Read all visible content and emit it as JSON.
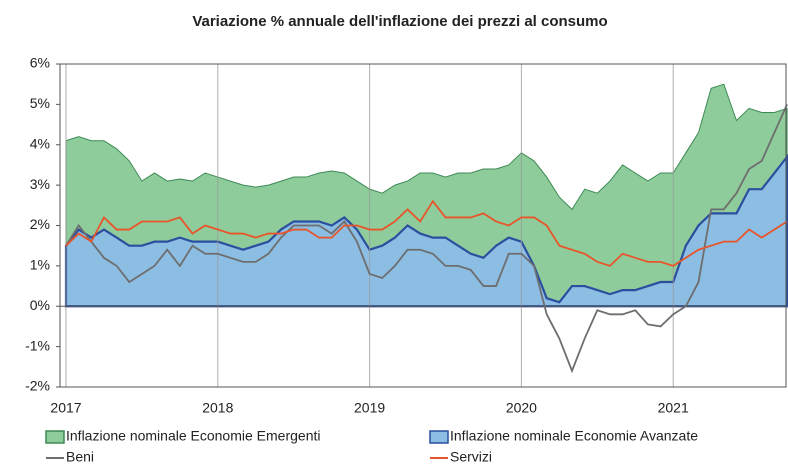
{
  "chart_data": {
    "type": "area-line",
    "title": "Variazione % annuale dell'inflazione dei prezzi al consumo",
    "categories": [
      "2017",
      null,
      null,
      null,
      null,
      null,
      null,
      null,
      null,
      null,
      null,
      null,
      "2018",
      null,
      null,
      null,
      null,
      null,
      null,
      null,
      null,
      null,
      null,
      null,
      "2019",
      null,
      null,
      null,
      null,
      null,
      null,
      null,
      null,
      null,
      null,
      null,
      "2020",
      null,
      null,
      null,
      null,
      null,
      null,
      null,
      null,
      null,
      null,
      null,
      "2021",
      null,
      null,
      null,
      null,
      null,
      null,
      null,
      null,
      null
    ],
    "series": [
      {
        "name": "Inflazione nominale Economie Emergenti",
        "kind": "area",
        "color": "#8fcc9c",
        "values": [
          4.1,
          4.2,
          4.1,
          4.1,
          3.9,
          3.6,
          3.1,
          3.3,
          3.1,
          3.15,
          3.1,
          3.3,
          3.2,
          3.1,
          3.0,
          2.95,
          3.0,
          3.1,
          3.2,
          3.2,
          3.3,
          3.35,
          3.3,
          3.1,
          2.9,
          2.8,
          3.0,
          3.1,
          3.3,
          3.3,
          3.2,
          3.3,
          3.3,
          3.4,
          3.4,
          3.5,
          3.8,
          3.6,
          3.2,
          2.7,
          2.4,
          2.9,
          2.8,
          3.1,
          3.5,
          3.3,
          3.1,
          3.3,
          3.3,
          3.8,
          4.3,
          5.4,
          5.5,
          4.6,
          4.9,
          4.8,
          4.8,
          4.9
        ]
      },
      {
        "name": "Inflazione nominale Economie Avanzate",
        "kind": "area",
        "color": "#8cbde3",
        "values": [
          1.5,
          1.9,
          1.7,
          1.9,
          1.7,
          1.5,
          1.5,
          1.6,
          1.6,
          1.7,
          1.6,
          1.6,
          1.6,
          1.5,
          1.4,
          1.5,
          1.6,
          1.9,
          2.1,
          2.1,
          2.1,
          2.0,
          2.2,
          1.9,
          1.4,
          1.5,
          1.7,
          2.0,
          1.8,
          1.7,
          1.7,
          1.5,
          1.3,
          1.2,
          1.5,
          1.7,
          1.6,
          1.0,
          0.2,
          0.1,
          0.5,
          0.5,
          0.4,
          0.3,
          0.4,
          0.4,
          0.5,
          0.6,
          0.6,
          1.5,
          2.0,
          2.3,
          2.3,
          2.3,
          2.9,
          2.9,
          3.3,
          3.7
        ]
      },
      {
        "name": "Beni",
        "kind": "line",
        "color": "#6e6e6e",
        "values": [
          1.5,
          2.0,
          1.6,
          1.2,
          1.0,
          0.6,
          0.8,
          1.0,
          1.4,
          1.0,
          1.5,
          1.3,
          1.3,
          1.2,
          1.1,
          1.1,
          1.3,
          1.7,
          2.0,
          2.0,
          2.0,
          1.8,
          2.1,
          1.6,
          0.8,
          0.7,
          1.0,
          1.4,
          1.4,
          1.3,
          1.0,
          1.0,
          0.9,
          0.5,
          0.5,
          1.3,
          1.3,
          1.0,
          -0.2,
          -0.8,
          -1.6,
          -0.8,
          -0.1,
          -0.2,
          -0.2,
          -0.1,
          -0.45,
          -0.5,
          -0.2,
          0.0,
          0.6,
          2.4,
          2.4,
          2.8,
          3.4,
          3.6,
          4.3,
          5.0
        ]
      },
      {
        "name": "Servizi",
        "kind": "line",
        "color": "#e8552a",
        "values": [
          1.5,
          1.8,
          1.6,
          2.2,
          1.9,
          1.9,
          2.1,
          2.1,
          2.1,
          2.2,
          1.8,
          2.0,
          1.9,
          1.8,
          1.8,
          1.7,
          1.8,
          1.8,
          1.9,
          1.9,
          1.7,
          1.7,
          2.0,
          2.0,
          1.9,
          1.9,
          2.1,
          2.4,
          2.1,
          2.6,
          2.2,
          2.2,
          2.2,
          2.3,
          2.1,
          2.0,
          2.2,
          2.2,
          2.0,
          1.5,
          1.4,
          1.3,
          1.1,
          1.0,
          1.3,
          1.2,
          1.1,
          1.1,
          1.0,
          1.2,
          1.4,
          1.5,
          1.6,
          1.6,
          1.9,
          1.7,
          1.9,
          2.1
        ]
      }
    ],
    "ylim": [
      -2,
      6
    ],
    "yticks": [
      {
        "value": -2,
        "label": "-2%"
      },
      {
        "value": -1,
        "label": "-1%"
      },
      {
        "value": 0,
        "label": "0%"
      },
      {
        "value": 1,
        "label": "1%"
      },
      {
        "value": 2,
        "label": "2%"
      },
      {
        "value": 3,
        "label": "3%"
      },
      {
        "value": 4,
        "label": "4%"
      },
      {
        "value": 5,
        "label": "5%"
      },
      {
        "value": 6,
        "label": "6%"
      }
    ],
    "grid": true
  }
}
